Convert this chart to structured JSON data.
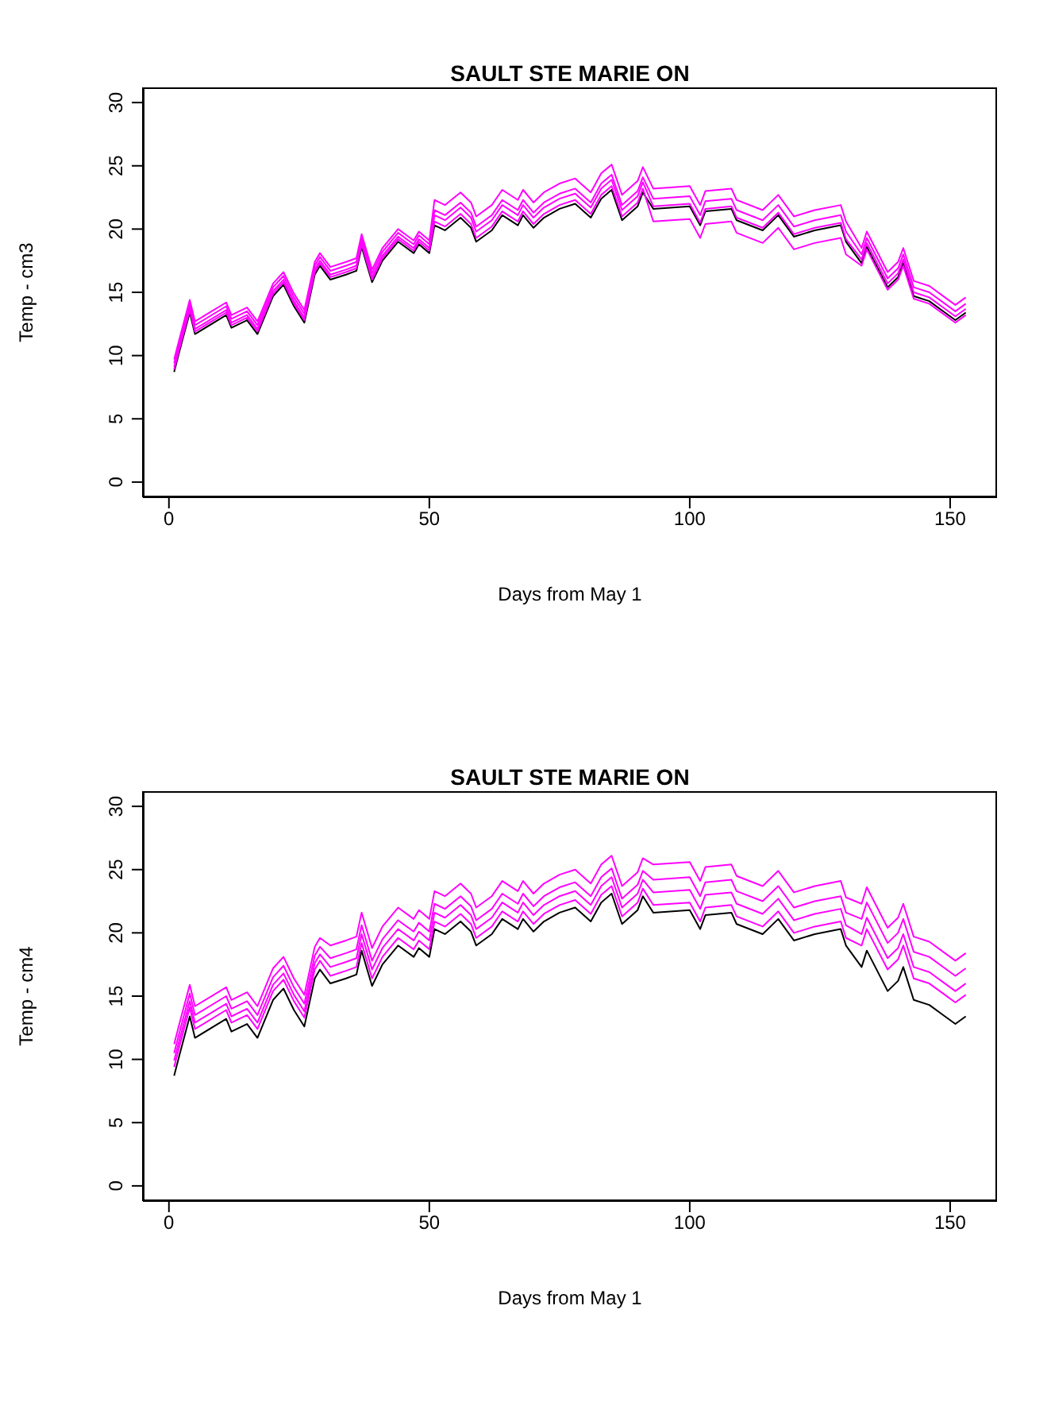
{
  "chart_data": [
    {
      "type": "line",
      "title": "SAULT STE MARIE ON",
      "xlabel": "Days from May 1",
      "ylabel": "Temp - cm3",
      "xlim": [
        -5,
        159
      ],
      "xticks": [
        0,
        50,
        100,
        150
      ],
      "ylim": [
        -1.2,
        31.2
      ],
      "yticks": [
        0,
        5,
        10,
        15,
        20,
        25,
        30
      ],
      "x": [
        1,
        2,
        4,
        5,
        11,
        12,
        15,
        17,
        20,
        22,
        24,
        26,
        28,
        29,
        31,
        34,
        36,
        37,
        39,
        41,
        44,
        47,
        48,
        50,
        51,
        53,
        56,
        58,
        59,
        62,
        64,
        67,
        68,
        70,
        72,
        75,
        78,
        81,
        83,
        85,
        87,
        90,
        91,
        93,
        100,
        102,
        103,
        108,
        109,
        114,
        117,
        120,
        124,
        129,
        130,
        133,
        134,
        138,
        140,
        141,
        143,
        146,
        149,
        151,
        153
      ],
      "series": [
        {
          "color": "#000000",
          "values": [
            8.7,
            10.3,
            13.4,
            11.7,
            13.2,
            12.2,
            12.8,
            11.7,
            14.7,
            15.6,
            13.9,
            12.6,
            16.4,
            17.1,
            16.0,
            16.4,
            16.7,
            18.6,
            15.8,
            17.5,
            19.0,
            18.1,
            18.8,
            18.1,
            20.3,
            19.9,
            20.9,
            20.1,
            19.0,
            19.9,
            21.1,
            20.3,
            21.1,
            20.1,
            20.9,
            21.6,
            22.0,
            20.9,
            22.4,
            23.1,
            20.7,
            21.8,
            22.9,
            21.6,
            21.8,
            20.3,
            21.4,
            21.6,
            20.7,
            19.9,
            21.1,
            19.4,
            19.9,
            20.3,
            19.0,
            17.3,
            18.6,
            15.4,
            16.2,
            17.3,
            14.7,
            14.3,
            13.4,
            12.8,
            13.4
          ]
        },
        {
          "color": "#ff00ff",
          "values": [
            9.7,
            11.3,
            14.4,
            12.7,
            14.2,
            13.2,
            13.8,
            12.7,
            15.7,
            16.6,
            14.9,
            13.6,
            17.4,
            18.1,
            17.0,
            17.4,
            17.7,
            19.6,
            16.8,
            18.5,
            20.0,
            19.1,
            19.8,
            19.1,
            22.3,
            21.9,
            22.9,
            22.1,
            21.0,
            21.9,
            23.1,
            22.3,
            23.1,
            22.1,
            22.9,
            23.6,
            24.0,
            22.9,
            24.4,
            25.1,
            22.7,
            23.8,
            24.9,
            23.2,
            23.4,
            21.9,
            23.0,
            23.2,
            22.3,
            21.5,
            22.7,
            21.0,
            21.5,
            21.9,
            20.6,
            18.5,
            19.8,
            16.6,
            17.4,
            18.5,
            15.9,
            15.5,
            14.6,
            14.0,
            14.6
          ]
        },
        {
          "color": "#ff00ff",
          "values": [
            9.4,
            11.0,
            14.1,
            12.4,
            13.9,
            12.9,
            13.5,
            12.4,
            15.4,
            16.3,
            14.6,
            13.3,
            17.1,
            17.8,
            16.7,
            17.1,
            17.4,
            19.3,
            16.5,
            18.2,
            19.7,
            18.8,
            19.5,
            18.8,
            21.5,
            21.1,
            22.1,
            21.3,
            20.2,
            21.1,
            22.3,
            21.5,
            22.3,
            21.3,
            22.1,
            22.8,
            23.2,
            22.1,
            23.6,
            24.3,
            21.9,
            23.0,
            24.1,
            22.4,
            22.6,
            21.1,
            22.2,
            22.4,
            21.5,
            20.7,
            21.9,
            20.2,
            20.7,
            21.1,
            19.8,
            18.0,
            19.3,
            16.1,
            16.9,
            18.0,
            15.4,
            15.0,
            14.1,
            13.5,
            14.1
          ]
        },
        {
          "color": "#ff00ff",
          "values": [
            9.1,
            10.7,
            13.8,
            12.1,
            13.6,
            12.6,
            13.2,
            12.1,
            15.1,
            16.0,
            14.3,
            13.0,
            16.8,
            17.5,
            16.4,
            16.8,
            17.1,
            19.0,
            16.2,
            17.9,
            19.4,
            18.5,
            19.2,
            18.5,
            21.1,
            20.7,
            21.7,
            20.9,
            19.8,
            20.7,
            21.9,
            21.1,
            21.9,
            20.9,
            21.7,
            22.4,
            22.8,
            21.7,
            23.2,
            23.9,
            21.5,
            22.6,
            23.7,
            21.8,
            22.0,
            20.5,
            21.6,
            21.8,
            20.9,
            20.1,
            21.3,
            19.6,
            20.1,
            20.5,
            19.2,
            17.6,
            18.9,
            15.7,
            16.5,
            17.6,
            15.0,
            14.6,
            13.7,
            13.1,
            13.7
          ]
        },
        {
          "color": "#ff00ff",
          "values": [
            8.9,
            10.5,
            13.6,
            11.9,
            13.4,
            12.4,
            13.0,
            11.9,
            14.9,
            15.8,
            14.1,
            12.8,
            16.6,
            17.3,
            16.2,
            16.6,
            16.9,
            18.8,
            16.0,
            17.7,
            19.2,
            18.3,
            19.0,
            18.3,
            20.6,
            20.2,
            21.2,
            20.4,
            19.3,
            20.2,
            21.4,
            20.6,
            21.4,
            20.4,
            21.2,
            21.9,
            22.3,
            21.2,
            22.7,
            23.4,
            21.0,
            22.1,
            23.2,
            20.6,
            20.8,
            19.3,
            20.4,
            20.6,
            19.7,
            18.9,
            20.1,
            18.4,
            18.9,
            19.3,
            18.0,
            17.1,
            18.4,
            15.2,
            16.0,
            17.1,
            14.5,
            14.1,
            13.2,
            12.6,
            13.2
          ]
        }
      ]
    },
    {
      "type": "line",
      "title": "SAULT STE MARIE ON",
      "xlabel": "Days from May 1",
      "ylabel": "Temp - cm4",
      "xlim": [
        -5,
        159
      ],
      "xticks": [
        0,
        50,
        100,
        150
      ],
      "ylim": [
        -1.2,
        31.2
      ],
      "yticks": [
        0,
        5,
        10,
        15,
        20,
        25,
        30
      ],
      "x": [
        1,
        2,
        4,
        5,
        11,
        12,
        15,
        17,
        20,
        22,
        24,
        26,
        28,
        29,
        31,
        34,
        36,
        37,
        39,
        41,
        44,
        47,
        48,
        50,
        51,
        53,
        56,
        58,
        59,
        62,
        64,
        67,
        68,
        70,
        72,
        75,
        78,
        81,
        83,
        85,
        87,
        90,
        91,
        93,
        100,
        102,
        103,
        108,
        109,
        114,
        117,
        120,
        124,
        129,
        130,
        133,
        134,
        138,
        140,
        141,
        143,
        146,
        149,
        151,
        153
      ],
      "series": [
        {
          "color": "#000000",
          "values": [
            8.7,
            10.3,
            13.4,
            11.7,
            13.2,
            12.2,
            12.8,
            11.7,
            14.7,
            15.6,
            13.9,
            12.6,
            16.4,
            17.1,
            16.0,
            16.4,
            16.7,
            18.6,
            15.8,
            17.5,
            19.0,
            18.1,
            18.8,
            18.1,
            20.3,
            19.9,
            20.9,
            20.1,
            19.0,
            19.9,
            21.1,
            20.3,
            21.1,
            20.1,
            20.9,
            21.6,
            22.0,
            20.9,
            22.4,
            23.1,
            20.7,
            21.8,
            22.9,
            21.6,
            21.8,
            20.3,
            21.4,
            21.6,
            20.7,
            19.9,
            21.1,
            19.4,
            19.9,
            20.3,
            19.0,
            17.3,
            18.6,
            15.4,
            16.2,
            17.3,
            14.7,
            14.3,
            13.4,
            12.8,
            13.4
          ]
        },
        {
          "color": "#ff00ff",
          "values": [
            11.2,
            12.8,
            15.9,
            14.2,
            15.7,
            14.7,
            15.3,
            14.2,
            17.2,
            18.1,
            16.4,
            15.1,
            18.9,
            19.6,
            19.0,
            19.4,
            19.7,
            21.6,
            18.8,
            20.5,
            22.0,
            21.1,
            21.8,
            21.1,
            23.3,
            22.9,
            23.9,
            23.1,
            22.0,
            22.9,
            24.1,
            23.3,
            24.1,
            23.1,
            23.9,
            24.6,
            25.0,
            23.9,
            25.4,
            26.1,
            23.7,
            24.8,
            25.9,
            25.4,
            25.6,
            24.1,
            25.2,
            25.4,
            24.5,
            23.7,
            24.9,
            23.2,
            23.7,
            24.1,
            22.8,
            22.3,
            23.6,
            20.4,
            21.2,
            22.3,
            19.7,
            19.3,
            18.4,
            17.8,
            18.4
          ]
        },
        {
          "color": "#ff00ff",
          "values": [
            10.5,
            12.1,
            15.2,
            13.5,
            15.0,
            14.0,
            14.6,
            13.5,
            16.5,
            17.4,
            15.7,
            14.4,
            18.2,
            18.9,
            18.0,
            18.4,
            18.7,
            20.6,
            17.8,
            19.5,
            21.0,
            20.1,
            20.8,
            20.1,
            22.3,
            21.9,
            22.9,
            22.1,
            21.0,
            21.9,
            23.1,
            22.3,
            23.1,
            22.1,
            22.9,
            23.6,
            24.0,
            22.9,
            24.4,
            25.1,
            22.7,
            23.8,
            24.9,
            24.2,
            24.4,
            22.9,
            24.0,
            24.2,
            23.3,
            22.5,
            23.7,
            22.0,
            22.5,
            22.9,
            21.6,
            21.1,
            22.4,
            19.2,
            20.0,
            21.1,
            18.5,
            18.1,
            17.2,
            16.6,
            17.2
          ]
        },
        {
          "color": "#ff00ff",
          "values": [
            9.9,
            11.5,
            14.6,
            12.9,
            14.4,
            13.4,
            14.0,
            12.9,
            15.9,
            16.8,
            15.1,
            13.8,
            17.6,
            18.3,
            17.3,
            17.7,
            18.0,
            19.9,
            17.1,
            18.8,
            20.3,
            19.4,
            20.1,
            19.4,
            21.6,
            21.2,
            22.2,
            21.4,
            20.3,
            21.2,
            22.4,
            21.6,
            22.4,
            21.4,
            22.2,
            22.9,
            23.3,
            22.2,
            23.7,
            24.4,
            22.0,
            23.1,
            24.2,
            23.2,
            23.4,
            21.9,
            23.0,
            23.2,
            22.3,
            21.5,
            22.7,
            21.0,
            21.5,
            21.9,
            20.6,
            19.9,
            21.2,
            18.0,
            18.8,
            19.9,
            17.3,
            16.9,
            16.0,
            15.4,
            16.0
          ]
        },
        {
          "color": "#ff00ff",
          "values": [
            9.4,
            11.0,
            14.1,
            12.4,
            13.9,
            12.9,
            13.5,
            12.4,
            15.4,
            16.3,
            14.6,
            13.3,
            17.1,
            17.8,
            16.6,
            17.0,
            17.3,
            19.2,
            16.4,
            18.1,
            19.6,
            18.7,
            19.4,
            18.7,
            20.9,
            20.5,
            21.5,
            20.7,
            19.6,
            20.5,
            21.7,
            20.9,
            21.7,
            20.7,
            21.5,
            22.2,
            22.6,
            21.5,
            23.0,
            23.7,
            21.3,
            22.4,
            23.5,
            22.2,
            22.4,
            20.9,
            22.0,
            22.2,
            21.3,
            20.5,
            21.7,
            20.0,
            20.5,
            20.9,
            19.6,
            19.0,
            20.3,
            17.1,
            17.9,
            19.0,
            16.4,
            16.0,
            15.1,
            14.5,
            15.1
          ]
        }
      ]
    }
  ]
}
